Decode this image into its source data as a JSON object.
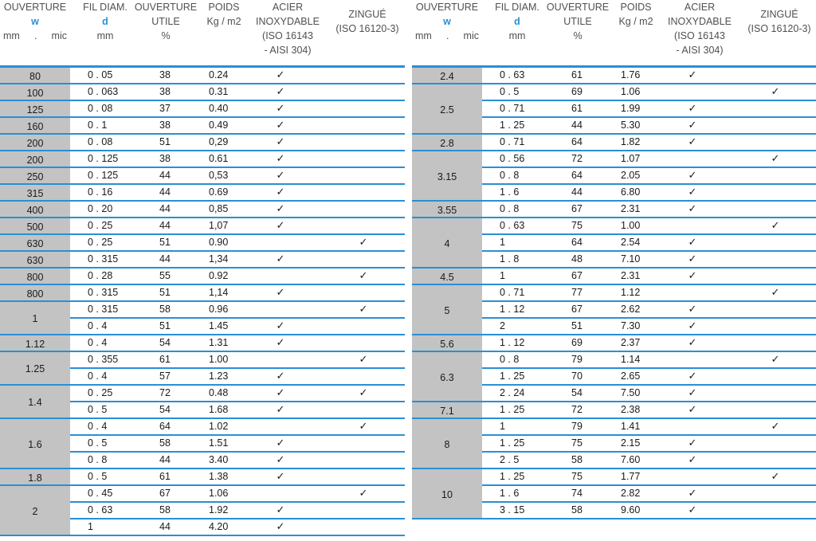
{
  "header": {
    "ouverture_w": [
      "OUVERTURE",
      "w"
    ],
    "units_w": [
      "mm",
      ".",
      "mic"
    ],
    "fil": [
      "FIL DIAM.",
      "d",
      "mm"
    ],
    "ouverture_utile": [
      "OUVERTURE",
      "UTILE",
      "%"
    ],
    "poids": [
      "POIDS",
      "Kg / m2"
    ],
    "acier": [
      "ACIER",
      "INOXYDABLE",
      "(ISO 16143",
      " - AISI 304)"
    ],
    "zingue": [
      "ZINGUÉ",
      "(ISO 16120-3)"
    ]
  },
  "check_glyph": "✓",
  "left": [
    {
      "w": "80",
      "rows": [
        {
          "d": "0 . 05",
          "o": "38",
          "p": "0.24",
          "inox": true,
          "zinc": false
        }
      ]
    },
    {
      "w": "100",
      "rows": [
        {
          "d": "0 . 063",
          "o": "38",
          "p": "0.31",
          "inox": true,
          "zinc": false
        }
      ]
    },
    {
      "w": "125",
      "rows": [
        {
          "d": "0 . 08",
          "o": "37",
          "p": "0.40",
          "inox": true,
          "zinc": false
        }
      ]
    },
    {
      "w": "160",
      "rows": [
        {
          "d": "0 . 1",
          "o": "38",
          "p": "0.49",
          "inox": true,
          "zinc": false
        }
      ]
    },
    {
      "w": "200",
      "rows": [
        {
          "d": "0 . 08",
          "o": "51",
          "p": "0,29",
          "inox": true,
          "zinc": false
        }
      ]
    },
    {
      "w": "200",
      "rows": [
        {
          "d": "0 . 125",
          "o": "38",
          "p": "0.61",
          "inox": true,
          "zinc": false
        }
      ]
    },
    {
      "w": "250",
      "rows": [
        {
          "d": "0 . 125",
          "o": "44",
          "p": "0,53",
          "inox": true,
          "zinc": false
        }
      ]
    },
    {
      "w": "315",
      "rows": [
        {
          "d": "0 . 16",
          "o": "44",
          "p": "0.69",
          "inox": true,
          "zinc": false
        }
      ]
    },
    {
      "w": "400",
      "rows": [
        {
          "d": "0 . 20",
          "o": "44",
          "p": "0,85",
          "inox": true,
          "zinc": false
        }
      ]
    },
    {
      "w": "500",
      "rows": [
        {
          "d": "0 . 25",
          "o": "44",
          "p": "1,07",
          "inox": true,
          "zinc": false
        }
      ]
    },
    {
      "w": "630",
      "rows": [
        {
          "d": "0 . 25",
          "o": "51",
          "p": "0.90",
          "inox": false,
          "zinc": true
        }
      ]
    },
    {
      "w": "630",
      "rows": [
        {
          "d": "0 . 315",
          "o": "44",
          "p": "1,34",
          "inox": true,
          "zinc": false
        }
      ]
    },
    {
      "w": "800",
      "rows": [
        {
          "d": "0 . 28",
          "o": "55",
          "p": "0.92",
          "inox": false,
          "zinc": true
        }
      ]
    },
    {
      "w": "800",
      "rows": [
        {
          "d": "0 . 315",
          "o": "51",
          "p": "1,14",
          "inox": true,
          "zinc": false
        }
      ]
    },
    {
      "w": "1",
      "rows": [
        {
          "d": "0 . 315",
          "o": "58",
          "p": "0.96",
          "inox": false,
          "zinc": true
        },
        {
          "d": "0 . 4",
          "o": "51",
          "p": "1.45",
          "inox": true,
          "zinc": false
        }
      ]
    },
    {
      "w": "1.12",
      "rows": [
        {
          "d": "0 . 4",
          "o": "54",
          "p": "1.31",
          "inox": true,
          "zinc": false
        }
      ]
    },
    {
      "w": "1.25",
      "rows": [
        {
          "d": "0 . 355",
          "o": "61",
          "p": "1.00",
          "inox": false,
          "zinc": true
        },
        {
          "d": "0 . 4",
          "o": "57",
          "p": "1.23",
          "inox": true,
          "zinc": false
        }
      ]
    },
    {
      "w": "1.4",
      "rows": [
        {
          "d": "0 . 25",
          "o": "72",
          "p": "0.48",
          "inox": true,
          "zinc": true
        },
        {
          "d": "0 . 5",
          "o": "54",
          "p": "1.68",
          "inox": true,
          "zinc": false
        }
      ]
    },
    {
      "w": "1.6",
      "rows": [
        {
          "d": "0 . 4",
          "o": "64",
          "p": "1.02",
          "inox": false,
          "zinc": true
        },
        {
          "d": "0 . 5",
          "o": "58",
          "p": "1.51",
          "inox": true,
          "zinc": false
        },
        {
          "d": "0 . 8",
          "o": "44",
          "p": "3.40",
          "inox": true,
          "zinc": false
        }
      ]
    },
    {
      "w": "1.8",
      "rows": [
        {
          "d": "0 . 5",
          "o": "61",
          "p": "1.38",
          "inox": true,
          "zinc": false
        }
      ]
    },
    {
      "w": "2",
      "rows": [
        {
          "d": "0 . 45",
          "o": "67",
          "p": "1.06",
          "inox": false,
          "zinc": true
        },
        {
          "d": "0 . 63",
          "o": "58",
          "p": "1.92",
          "inox": true,
          "zinc": false
        },
        {
          "d": "1",
          "o": "44",
          "p": "4.20",
          "inox": true,
          "zinc": false
        }
      ]
    }
  ],
  "right": [
    {
      "w": "2.4",
      "rows": [
        {
          "d": "0 . 63",
          "o": "61",
          "p": "1.76",
          "inox": true,
          "zinc": false
        }
      ]
    },
    {
      "w": "2.5",
      "rows": [
        {
          "d": "0 . 5",
          "o": "69",
          "p": "1.06",
          "inox": false,
          "zinc": true
        },
        {
          "d": "0 . 71",
          "o": "61",
          "p": "1.99",
          "inox": true,
          "zinc": false
        },
        {
          "d": "1 . 25",
          "o": "44",
          "p": "5.30",
          "inox": true,
          "zinc": false
        }
      ]
    },
    {
      "w": "2.8",
      "rows": [
        {
          "d": "0 . 71",
          "o": "64",
          "p": "1.82",
          "inox": true,
          "zinc": false
        }
      ]
    },
    {
      "w": "3.15",
      "rows": [
        {
          "d": "0 . 56",
          "o": "72",
          "p": "1.07",
          "inox": false,
          "zinc": true
        },
        {
          "d": "0 . 8",
          "o": "64",
          "p": "2.05",
          "inox": true,
          "zinc": false
        },
        {
          "d": "1 . 6",
          "o": "44",
          "p": "6.80",
          "inox": true,
          "zinc": false
        }
      ]
    },
    {
      "w": "3.55",
      "rows": [
        {
          "d": "0 . 8",
          "o": "67",
          "p": "2.31",
          "inox": true,
          "zinc": false
        }
      ]
    },
    {
      "w": "4",
      "rows": [
        {
          "d": "0 . 63",
          "o": "75",
          "p": "1.00",
          "inox": false,
          "zinc": true
        },
        {
          "d": "1",
          "o": "64",
          "p": "2.54",
          "inox": true,
          "zinc": false
        },
        {
          "d": "1 . 8",
          "o": "48",
          "p": "7.10",
          "inox": true,
          "zinc": false
        }
      ]
    },
    {
      "w": "4.5",
      "rows": [
        {
          "d": "1",
          "o": "67",
          "p": "2.31",
          "inox": true,
          "zinc": false
        }
      ]
    },
    {
      "w": "5",
      "rows": [
        {
          "d": "0 . 71",
          "o": "77",
          "p": "1.12",
          "inox": false,
          "zinc": true
        },
        {
          "d": "1 . 12",
          "o": "67",
          "p": "2.62",
          "inox": true,
          "zinc": false
        },
        {
          "d": "2",
          "o": "51",
          "p": "7.30",
          "inox": true,
          "zinc": false
        }
      ]
    },
    {
      "w": "5.6",
      "rows": [
        {
          "d": "1 . 12",
          "o": "69",
          "p": "2.37",
          "inox": true,
          "zinc": false
        }
      ]
    },
    {
      "w": "6.3",
      "rows": [
        {
          "d": "0 . 8",
          "o": "79",
          "p": "1.14",
          "inox": false,
          "zinc": true
        },
        {
          "d": "1 . 25",
          "o": "70",
          "p": "2.65",
          "inox": true,
          "zinc": false
        },
        {
          "d": "2 . 24",
          "o": "54",
          "p": "7.50",
          "inox": true,
          "zinc": false
        }
      ]
    },
    {
      "w": "7.1",
      "rows": [
        {
          "d": "1 . 25",
          "o": "72",
          "p": "2.38",
          "inox": true,
          "zinc": false
        }
      ]
    },
    {
      "w": "8",
      "rows": [
        {
          "d": "1",
          "o": "79",
          "p": "1.41",
          "inox": false,
          "zinc": true
        },
        {
          "d": "1 . 25",
          "o": "75",
          "p": "2.15",
          "inox": true,
          "zinc": false
        },
        {
          "d": "2 . 5",
          "o": "58",
          "p": "7.60",
          "inox": true,
          "zinc": false
        }
      ]
    },
    {
      "w": "10",
      "rows": [
        {
          "d": "1 . 25",
          "o": "75",
          "p": "1.77",
          "inox": false,
          "zinc": true
        },
        {
          "d": "1 . 6",
          "o": "74",
          "p": "2.82",
          "inox": true,
          "zinc": false
        },
        {
          "d": "3 . 15",
          "o": "58",
          "p": "9.60",
          "inox": true,
          "zinc": false
        }
      ]
    }
  ]
}
